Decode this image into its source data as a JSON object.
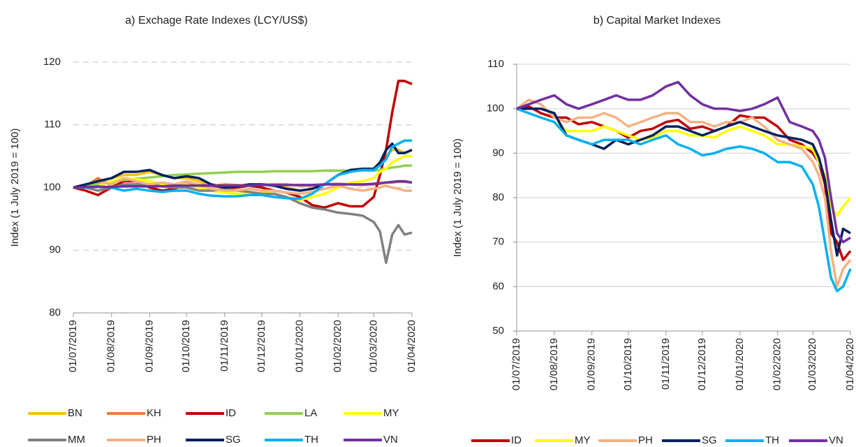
{
  "chart_data": [
    {
      "type": "line",
      "title": "a) Exchage Rate Indexes (LCY/US$)",
      "y_label": "Index (1 July 2019 = 100)",
      "x": [
        "01/07/2019",
        "11/07/2019",
        "21/07/2019",
        "01/08/2019",
        "11/08/2019",
        "21/08/2019",
        "01/09/2019",
        "11/09/2019",
        "21/09/2019",
        "01/10/2019",
        "11/10/2019",
        "21/10/2019",
        "01/11/2019",
        "11/11/2019",
        "21/11/2019",
        "01/12/2019",
        "11/12/2019",
        "21/12/2019",
        "01/01/2020",
        "11/01/2020",
        "21/01/2020",
        "01/02/2020",
        "11/02/2020",
        "21/02/2020",
        "01/03/2020",
        "06/03/2020",
        "11/03/2020",
        "16/03/2020",
        "21/03/2020",
        "26/03/2020",
        "01/04/2020"
      ],
      "xlim": [
        "01/07/2019",
        "01/04/2020"
      ],
      "xticks": [
        "01/07/2019",
        "01/08/2019",
        "01/09/2019",
        "01/10/2019",
        "01/11/2019",
        "01/12/2019",
        "01/01/2020",
        "01/02/2020",
        "01/03/2020",
        "01/04/2020"
      ],
      "ylim": [
        80,
        120
      ],
      "yticks": [
        80,
        90,
        100,
        110,
        120
      ],
      "grid": true,
      "grid_style": "dashed",
      "legend_position": "bottom",
      "series": [
        {
          "name": "BN",
          "color": "#FFC000",
          "values": [
            100,
            100.5,
            101,
            101.5,
            102,
            102,
            102.5,
            102,
            101.5,
            101.5,
            101,
            100.5,
            100,
            100,
            100.5,
            100.5,
            100.5,
            100,
            99.5,
            99.8,
            100.5,
            102,
            102.5,
            102.8,
            103,
            104,
            105,
            106,
            106,
            105.5,
            106
          ]
        },
        {
          "name": "KH",
          "color": "#ED7D31",
          "values": [
            100,
            100.2,
            101.5,
            100.3,
            100.4,
            100.5,
            100.3,
            100.2,
            100.4,
            100.6,
            100.5,
            100.3,
            100.5,
            100.4,
            100.3,
            100.4,
            100.5,
            100.5,
            100.3,
            100.3,
            100.5,
            100.6,
            100.5,
            100.4,
            100.5,
            100.6,
            100.8,
            100.8,
            100.9,
            100.9,
            100.8
          ]
        },
        {
          "name": "ID",
          "color": "#C00000",
          "values": [
            100,
            99.5,
            98.8,
            100,
            101,
            101,
            100,
            99.5,
            99.8,
            100.5,
            100,
            100.3,
            100,
            100,
            100.3,
            100,
            99.5,
            99.2,
            98.5,
            97.2,
            96.8,
            97.5,
            97,
            97,
            98.5,
            102,
            106,
            112,
            117,
            117,
            116.5
          ]
        },
        {
          "name": "LA",
          "color": "#92D050",
          "values": [
            100,
            100.3,
            100.6,
            100.9,
            101.2,
            101.4,
            101.6,
            101.8,
            102,
            102.1,
            102.2,
            102.3,
            102.4,
            102.5,
            102.5,
            102.5,
            102.6,
            102.6,
            102.6,
            102.6,
            102.7,
            102.7,
            102.7,
            102.7,
            102.7,
            102.8,
            103,
            103.2,
            103.3,
            103.5,
            103.5
          ]
        },
        {
          "name": "MY",
          "color": "#FFFF00",
          "values": [
            100,
            100,
            100.2,
            101,
            101.5,
            101.3,
            101,
            100.5,
            100.2,
            100.5,
            100,
            99.5,
            99.2,
            99,
            99,
            99.2,
            99,
            98.5,
            98,
            98.5,
            99,
            100,
            100.8,
            101,
            101.5,
            102.5,
            103,
            104,
            104.5,
            105,
            105
          ]
        },
        {
          "name": "MM",
          "color": "#808080",
          "values": [
            100,
            100,
            99.5,
            100,
            100.5,
            100.5,
            100.5,
            100.2,
            100,
            100,
            99.5,
            99.5,
            99.8,
            99.5,
            99.3,
            99,
            99,
            98.5,
            97.5,
            96.8,
            96.5,
            96,
            95.8,
            95.5,
            94.5,
            93,
            88,
            92.5,
            94,
            92.5,
            92.8
          ]
        },
        {
          "name": "PH",
          "color": "#F4B183",
          "values": [
            100,
            100.5,
            101,
            100.5,
            101.5,
            101,
            100.5,
            100.8,
            100.5,
            101,
            100.5,
            99.8,
            99.5,
            99.5,
            99.8,
            99.5,
            99.5,
            99.2,
            99,
            99.3,
            99.8,
            100.3,
            99.8,
            99.5,
            99.8,
            100,
            100.3,
            100,
            99.8,
            99.5,
            99.5
          ]
        },
        {
          "name": "SG",
          "color": "#002060",
          "values": [
            100,
            100.5,
            101,
            101.5,
            102.5,
            102.5,
            102.8,
            102,
            101.5,
            101.8,
            101.5,
            100.5,
            100,
            100.2,
            100.5,
            100.5,
            100.3,
            99.8,
            99.5,
            99.8,
            100.5,
            102,
            102.8,
            103,
            103,
            104,
            106,
            107,
            105.5,
            105.5,
            106
          ]
        },
        {
          "name": "TH",
          "color": "#00B0F0",
          "values": [
            100,
            100,
            100.2,
            100,
            99.5,
            99.8,
            99.5,
            99.3,
            99.5,
            99.5,
            99,
            98.7,
            98.6,
            98.6,
            98.8,
            98.8,
            98.5,
            98.3,
            98.2,
            99,
            100.5,
            102,
            102.5,
            102.8,
            102.8,
            103.5,
            104.5,
            106.5,
            107,
            107.5,
            107.5
          ]
        },
        {
          "name": "VN",
          "color": "#7030A0",
          "values": [
            100,
            100.1,
            100.1,
            100.1,
            100.2,
            100.2,
            100.2,
            100.2,
            100.3,
            100.3,
            100.3,
            100.3,
            100.3,
            100.3,
            100.3,
            100.4,
            100.4,
            100.4,
            100.4,
            100.4,
            100.5,
            100.5,
            100.5,
            100.5,
            100.6,
            100.7,
            100.8,
            100.9,
            101,
            101,
            100.8
          ]
        }
      ]
    },
    {
      "type": "line",
      "title": "b) Capital Market Indexes",
      "y_label": "Index (1 July 2019 = 100)",
      "x": [
        "01/07/2019",
        "11/07/2019",
        "21/07/2019",
        "01/08/2019",
        "11/08/2019",
        "21/08/2019",
        "01/09/2019",
        "11/09/2019",
        "21/09/2019",
        "01/10/2019",
        "11/10/2019",
        "21/10/2019",
        "01/11/2019",
        "11/11/2019",
        "21/11/2019",
        "01/12/2019",
        "11/12/2019",
        "21/12/2019",
        "01/01/2020",
        "11/01/2020",
        "21/01/2020",
        "01/02/2020",
        "11/02/2020",
        "21/02/2020",
        "01/03/2020",
        "06/03/2020",
        "11/03/2020",
        "16/03/2020",
        "21/03/2020",
        "26/03/2020",
        "01/04/2020"
      ],
      "xlim": [
        "01/07/2019",
        "01/04/2020"
      ],
      "xticks": [
        "01/07/2019",
        "01/08/2019",
        "01/09/2019",
        "01/10/2019",
        "01/11/2019",
        "01/12/2019",
        "01/01/2020",
        "01/02/2020",
        "01/03/2020",
        "01/04/2020"
      ],
      "ylim": [
        50,
        110
      ],
      "yticks": [
        50,
        60,
        70,
        80,
        90,
        100,
        110
      ],
      "grid": true,
      "grid_style": "solid",
      "legend_position": "bottom",
      "series": [
        {
          "name": "ID",
          "color": "#C00000",
          "values": [
            100,
            100.5,
            99,
            98,
            98,
            96.5,
            97,
            96,
            95,
            93.5,
            95,
            95.5,
            97,
            97.5,
            95.5,
            96,
            95,
            96,
            98.5,
            98,
            98,
            96,
            93,
            92,
            90,
            88,
            83,
            72,
            70,
            66,
            68
          ]
        },
        {
          "name": "MY",
          "color": "#FFFF00",
          "values": [
            100,
            99,
            98,
            97,
            95,
            95,
            95,
            96,
            95,
            94,
            93,
            93.5,
            95,
            95,
            94,
            94,
            93.5,
            95,
            96,
            95,
            94,
            92,
            92,
            91.5,
            91,
            88,
            85,
            78,
            76,
            78,
            80
          ]
        },
        {
          "name": "PH",
          "color": "#F4B183",
          "values": [
            100,
            102,
            101,
            98,
            97,
            98,
            98,
            99,
            98,
            96,
            97,
            98,
            99,
            99,
            97,
            97,
            96,
            97,
            97,
            98,
            96,
            93,
            92,
            91,
            88,
            85,
            80,
            68,
            60,
            64,
            66
          ]
        },
        {
          "name": "SG",
          "color": "#002060",
          "values": [
            100,
            100,
            100,
            99,
            94,
            93,
            92,
            91,
            93,
            92,
            93,
            94,
            96,
            96,
            95,
            94,
            95,
            96,
            97,
            96,
            95,
            94,
            93.5,
            93,
            92,
            89,
            84,
            75,
            67,
            73,
            72
          ]
        },
        {
          "name": "TH",
          "color": "#00B0F0",
          "values": [
            100,
            99,
            98,
            97,
            94,
            93,
            92,
            93,
            93,
            93,
            92,
            93,
            94,
            92,
            91,
            89.5,
            90,
            91,
            91.5,
            91,
            90,
            88,
            88,
            87,
            83,
            78,
            70,
            62,
            59,
            60,
            64
          ]
        },
        {
          "name": "VN",
          "color": "#7030A0",
          "values": [
            100,
            101,
            102,
            103,
            101,
            100,
            101,
            102,
            103,
            102,
            102,
            103,
            105,
            106,
            103,
            101,
            100,
            100,
            99.5,
            100,
            101,
            102.5,
            97,
            96,
            95,
            93,
            89,
            80,
            72,
            70,
            71
          ]
        }
      ]
    }
  ]
}
